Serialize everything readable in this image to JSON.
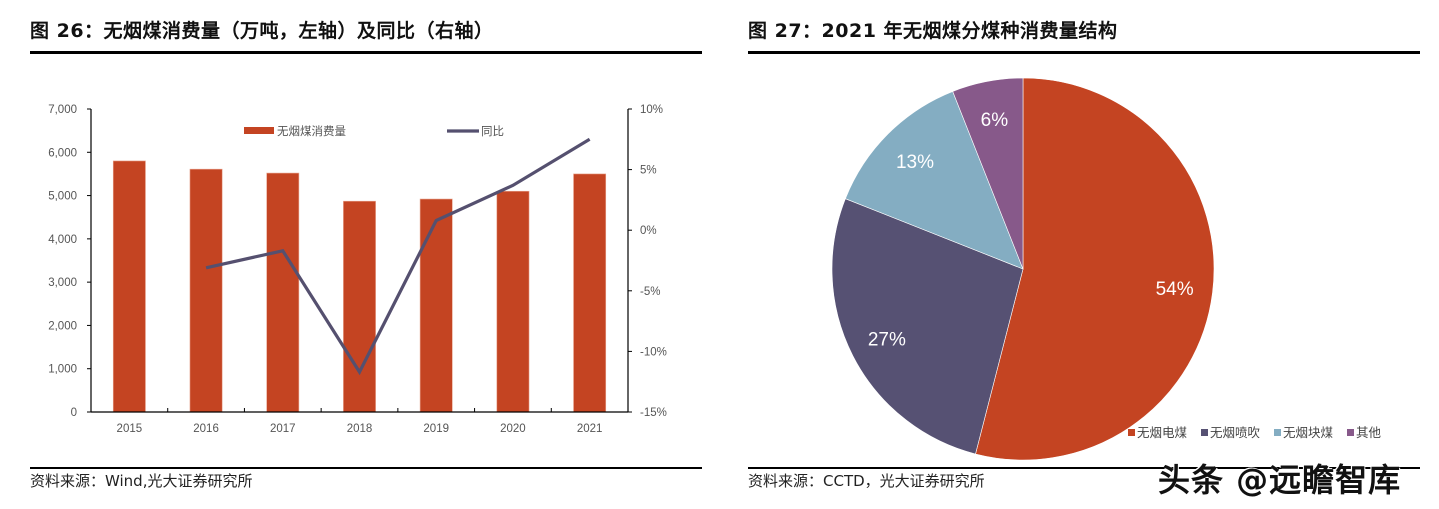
{
  "left_panel": {
    "title": "图 26：无烟煤消费量（万吨，左轴）及同比（右轴）",
    "source": "资料来源：Wind,光大证券研究所"
  },
  "right_panel": {
    "title": "图 27：2021 年无烟煤分煤种消费量结构",
    "source": "资料来源：CCTD，光大证券研究所"
  },
  "watermark": "头条 @远瞻智库",
  "chart_data": [
    {
      "type": "bar",
      "title": "图 26：无烟煤消费量（万吨，左轴）及同比（右轴）",
      "categories": [
        "2015",
        "2016",
        "2017",
        "2018",
        "2019",
        "2020",
        "2021"
      ],
      "series": [
        {
          "name": "无烟煤消费量",
          "type": "bar",
          "axis": "left",
          "color": "#C44422",
          "values": [
            5800,
            5610,
            5520,
            4870,
            4920,
            5100,
            5500
          ]
        },
        {
          "name": "同比",
          "type": "line",
          "axis": "right",
          "color": "#55506F",
          "values": [
            null,
            -3.1,
            -1.7,
            -11.7,
            0.8,
            3.7,
            7.5
          ]
        }
      ],
      "left_axis": {
        "ylim": [
          0,
          7000
        ],
        "ticks": [
          "0",
          "1,000",
          "2,000",
          "3,000",
          "4,000",
          "5,000",
          "6,000",
          "7,000"
        ],
        "tick_values": [
          0,
          1000,
          2000,
          3000,
          4000,
          5000,
          6000,
          7000
        ]
      },
      "right_axis": {
        "ylim": [
          -15,
          10
        ],
        "ticks": [
          "-15%",
          "-10%",
          "-5%",
          "0%",
          "5%",
          "10%"
        ],
        "tick_values": [
          -15,
          -10,
          -5,
          0,
          5,
          10
        ]
      },
      "legend": {
        "placement": "top",
        "items": [
          "无烟煤消费量",
          "同比"
        ]
      },
      "grid": false
    },
    {
      "type": "pie",
      "title": "图 27：2021 年无烟煤分煤种消费量结构",
      "slices": [
        {
          "label": "无烟电煤",
          "value": 54,
          "display": "54%",
          "color": "#C44422"
        },
        {
          "label": "无烟喷吹",
          "value": 27,
          "display": "27%",
          "color": "#565173"
        },
        {
          "label": "无烟块煤",
          "value": 13,
          "display": "13%",
          "color": "#84ADC2"
        },
        {
          "label": "其他",
          "value": 6,
          "display": "6%",
          "color": "#87598A"
        }
      ],
      "legend": {
        "placement": "bottom-right"
      }
    }
  ]
}
